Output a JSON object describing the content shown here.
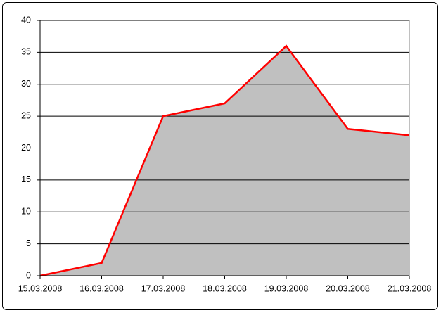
{
  "chart_data": {
    "type": "area",
    "categories": [
      "15.03.2008",
      "16.03.2008",
      "17.03.2008",
      "18.03.2008",
      "19.03.2008",
      "20.03.2008",
      "21.03.2008"
    ],
    "values": [
      0,
      2,
      25,
      27,
      36,
      23,
      22
    ],
    "color": "#ff0000",
    "fill_color": "#c0c0c0",
    "ylim": [
      0,
      40
    ],
    "yticks": [
      0,
      5,
      10,
      15,
      20,
      25,
      30,
      35,
      40
    ],
    "grid": true
  }
}
